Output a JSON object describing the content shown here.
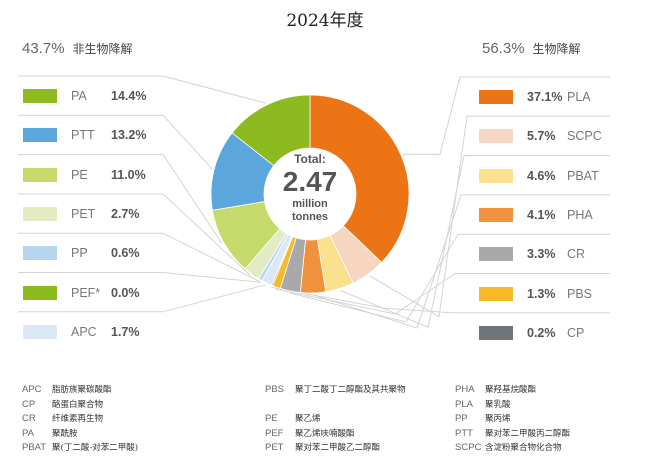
{
  "title": "2024年度",
  "non_bio": {
    "pct": "43.7%",
    "label": "非生物降解"
  },
  "bio": {
    "pct": "56.3%",
    "label": "生物降解"
  },
  "center": {
    "line1": "Total:",
    "line2": "2.47",
    "line3": "million",
    "line4": "tonnes"
  },
  "chart_data": {
    "type": "pie",
    "donut": true,
    "title": "2024年度",
    "total": "2.47 million tonnes",
    "slices_clockwise_from_top": [
      {
        "name": "PLA",
        "value": 37.1,
        "label": "37.1%",
        "color": "#ec7415",
        "group": "bio"
      },
      {
        "name": "SCPC",
        "value": 5.7,
        "label": "5.7%",
        "color": "#f6d6c0",
        "group": "bio"
      },
      {
        "name": "PBAT",
        "value": 4.6,
        "label": "4.6%",
        "color": "#fbe08e",
        "group": "bio"
      },
      {
        "name": "PHA",
        "value": 4.1,
        "label": "4.1%",
        "color": "#f0913e",
        "group": "bio"
      },
      {
        "name": "CR",
        "value": 3.3,
        "label": "3.3%",
        "color": "#a9a9a9",
        "group": "bio"
      },
      {
        "name": "PBS",
        "value": 1.3,
        "label": "1.3%",
        "color": "#f7b927",
        "group": "bio"
      },
      {
        "name": "CP",
        "value": 0.2,
        "label": "0.2%",
        "color": "#6f7478",
        "group": "bio"
      },
      {
        "name": "APC",
        "value": 1.7,
        "label": "1.7%",
        "color": "#dbe8f5",
        "group": "non_bio"
      },
      {
        "name": "PEF*",
        "value": 0.0,
        "label": "0.0%",
        "color": "#8dba1f",
        "group": "non_bio"
      },
      {
        "name": "PP",
        "value": 0.6,
        "label": "0.6%",
        "color": "#b7d5ee",
        "group": "non_bio"
      },
      {
        "name": "PET",
        "value": 2.7,
        "label": "2.7%",
        "color": "#e2ebc2",
        "group": "non_bio"
      },
      {
        "name": "PE",
        "value": 11.0,
        "label": "11.0%",
        "color": "#c6da6c",
        "group": "non_bio"
      },
      {
        "name": "PTT",
        "value": 13.2,
        "label": "13.2%",
        "color": "#5aa6dd",
        "group": "non_bio"
      },
      {
        "name": "PA",
        "value": 14.4,
        "label": "14.4%",
        "color": "#8dba1f",
        "group": "non_bio"
      }
    ],
    "legend_left": [
      "PA",
      "PTT",
      "PE",
      "PET",
      "PP",
      "PEF*",
      "APC"
    ],
    "legend_right": [
      "PLA",
      "SCPC",
      "PBAT",
      "PHA",
      "CR",
      "PBS",
      "CP"
    ]
  },
  "glossary": [
    [
      {
        "abbr": "APC",
        "name": "脂肪族聚碳酸酯"
      },
      {
        "abbr": "CP",
        "name": "酪蛋白聚合物"
      },
      {
        "abbr": "CR",
        "name": "纤维素再生物"
      },
      {
        "abbr": "PA",
        "name": "聚酰胺"
      },
      {
        "abbr": "PBAT",
        "name": "聚(丁二酸-对苯二甲酸)"
      }
    ],
    [
      {
        "abbr": "PBS",
        "name": "聚丁二酸丁二醇酯及其共聚物"
      },
      {
        "abbr": "",
        "name": ""
      },
      {
        "abbr": "PE",
        "name": "聚乙烯"
      },
      {
        "abbr": "PEF",
        "name": "聚乙烯呋喃酸酯"
      },
      {
        "abbr": "PET",
        "name": "聚对苯二甲酸乙二醇酯"
      }
    ],
    [
      {
        "abbr": "PHA",
        "name": "聚羟基烷酸酯"
      },
      {
        "abbr": "PLA",
        "name": "聚乳酸"
      },
      {
        "abbr": "PP",
        "name": "聚丙烯"
      },
      {
        "abbr": "PTT",
        "name": "聚对苯二甲酸丙二醇酯"
      },
      {
        "abbr": "SCPC",
        "name": "含淀粉聚合物化合物"
      }
    ]
  ]
}
